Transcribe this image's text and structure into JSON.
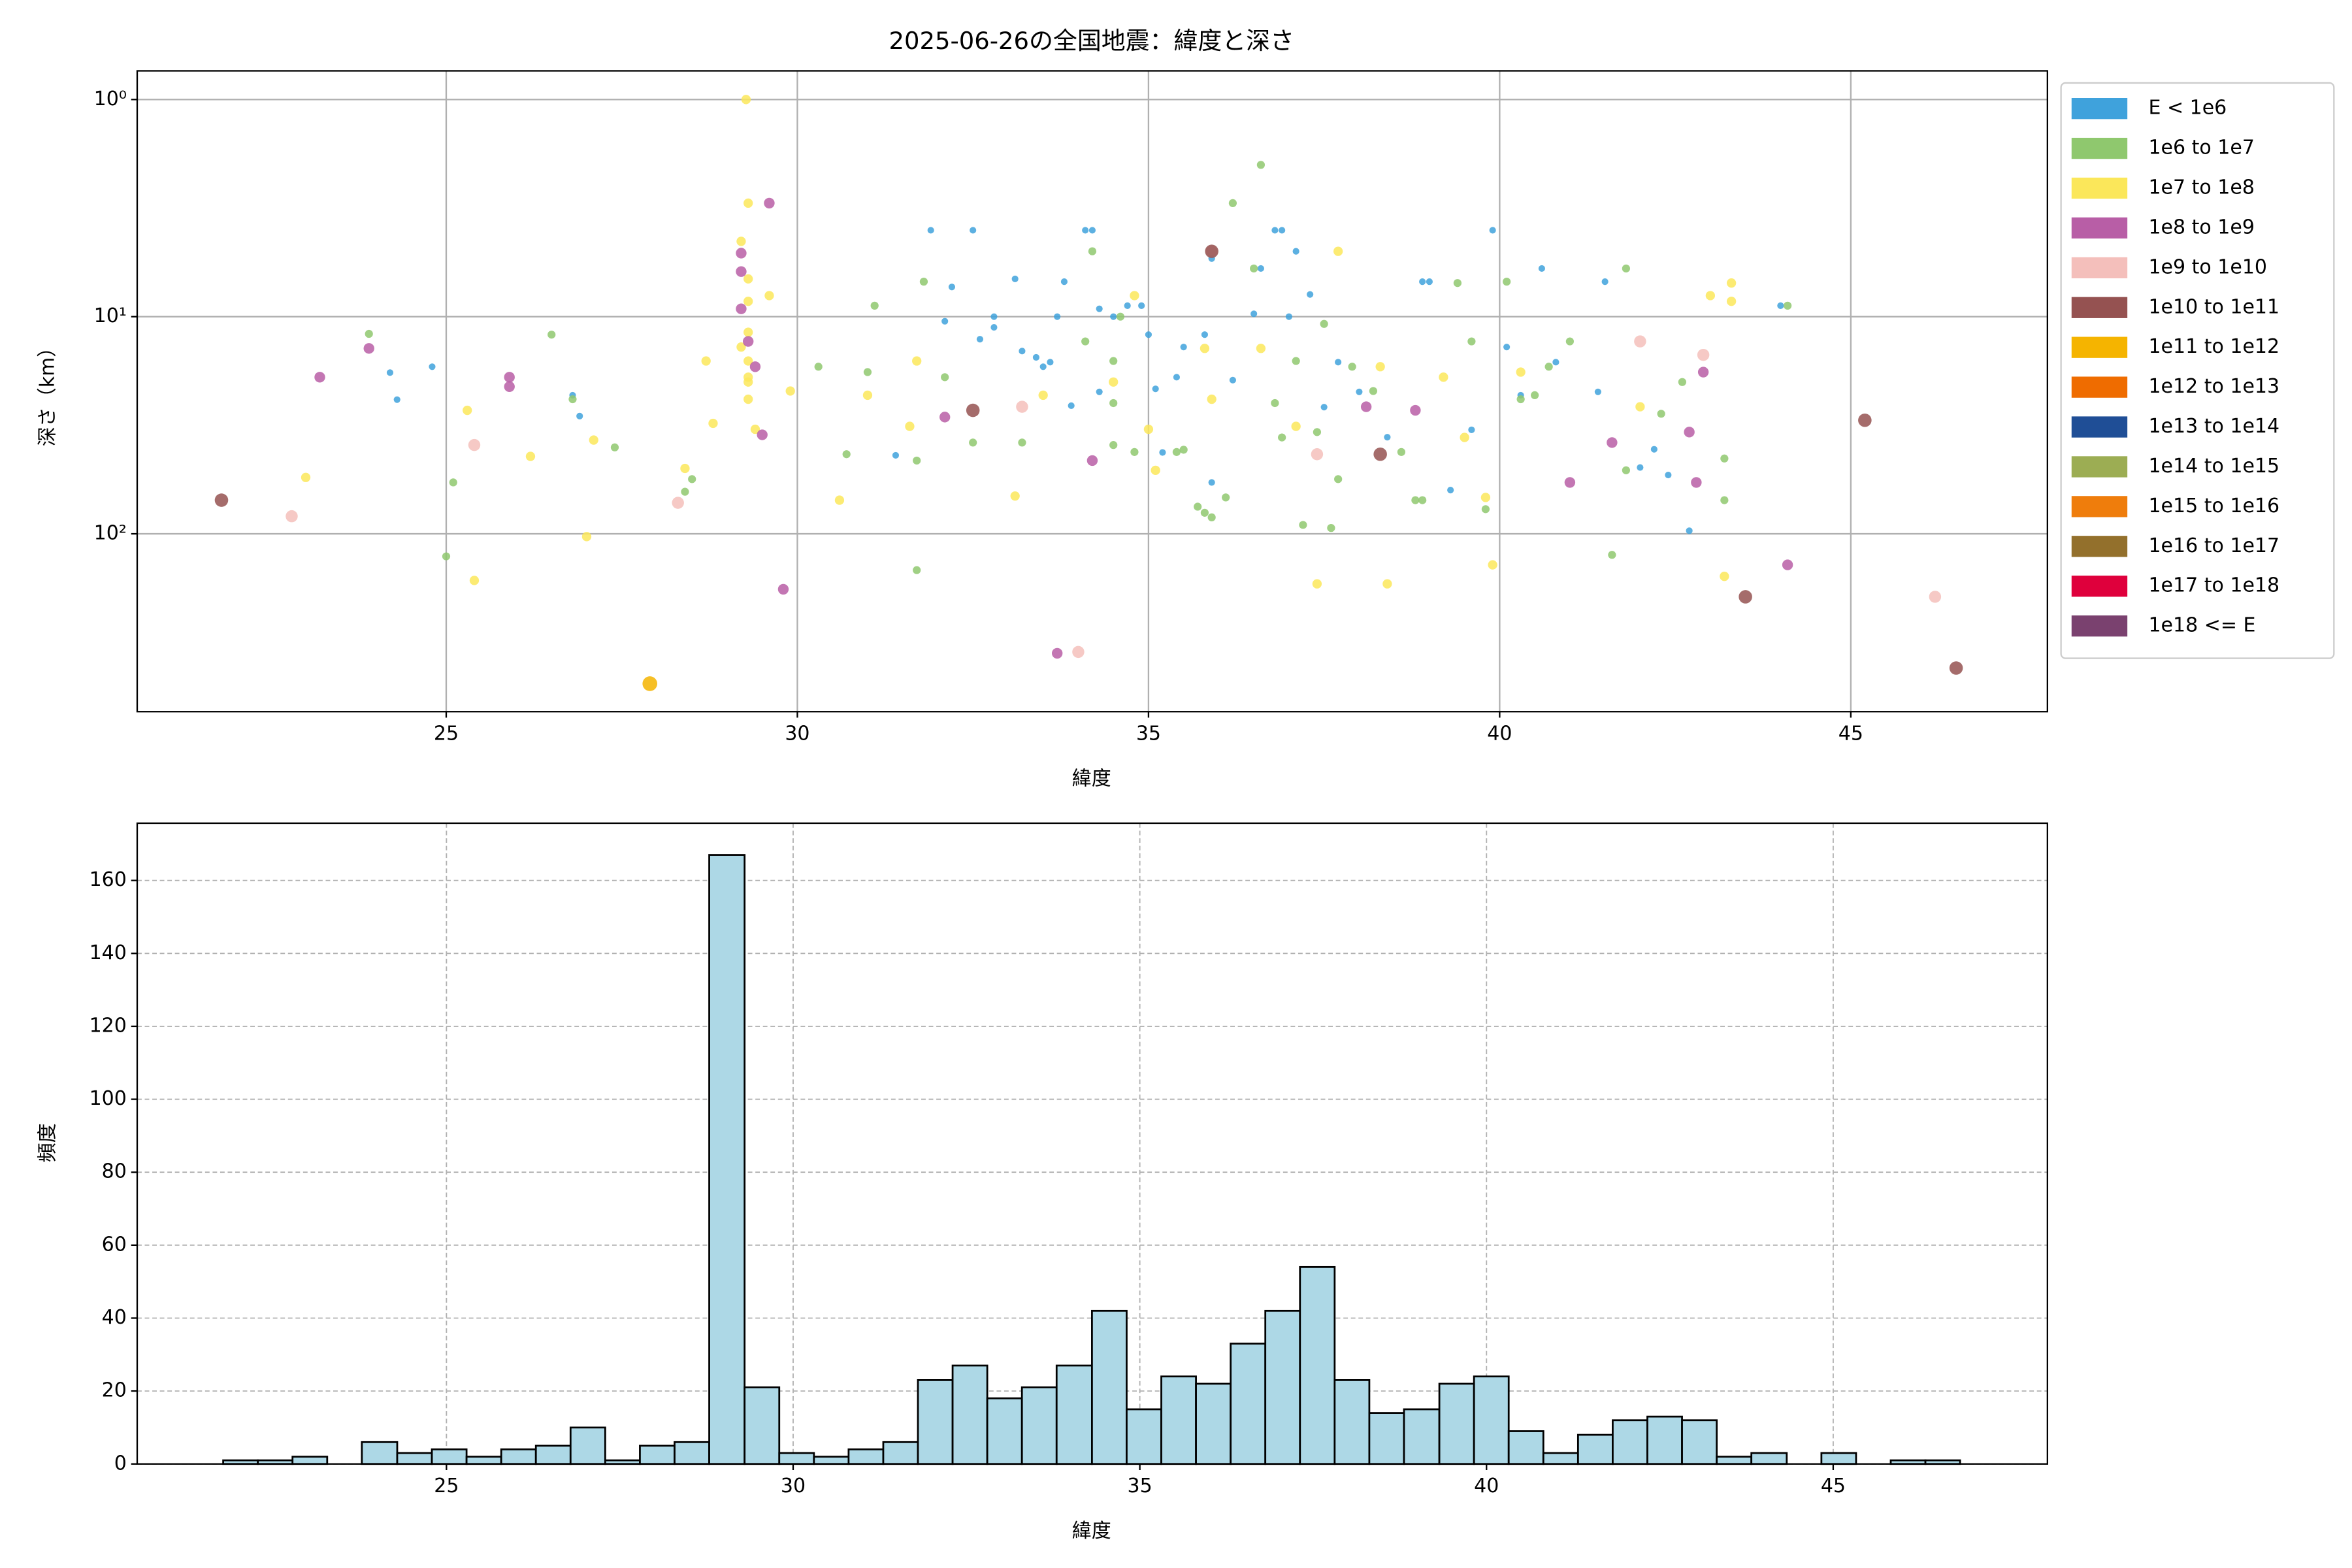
{
  "chart_data": [
    {
      "type": "scatter",
      "title": "2025-06-26の全国地震：緯度と深さ",
      "xlabel": "緯度",
      "ylabel": "深さ（km）",
      "xlim": [
        20.6,
        47.8
      ],
      "xticks": [
        25,
        30,
        35,
        40,
        45
      ],
      "ylim": [
        659,
        0.738
      ],
      "yscale": "log",
      "yticks": [
        {
          "value": 1,
          "label": "10⁰"
        },
        {
          "value": 10,
          "label": "10¹"
        },
        {
          "value": 100,
          "label": "10²"
        }
      ],
      "grid": true,
      "legend": "outside upper right",
      "series": [
        {
          "name": "E < 1e6",
          "color": "#3fa2dc",
          "x": [
            24.2,
            24.3,
            24.8,
            26.8,
            26.9,
            31.4,
            31.9,
            32.1,
            32.5,
            32.2,
            32.6,
            32.8,
            33.1,
            33.2,
            33.6,
            33.8,
            33.9,
            34.2,
            34.1,
            34.3,
            34.5,
            34.7,
            34.9,
            35.0,
            35.1,
            35.2,
            35.4,
            35.5,
            35.8,
            35.9,
            35.9,
            36.2,
            36.5,
            36.6,
            36.8,
            36.9,
            37.0,
            37.1,
            37.3,
            37.5,
            37.7,
            38.0,
            38.4,
            38.9,
            39.0,
            39.3,
            39.6,
            39.9,
            40.1,
            40.3,
            40.6,
            40.8,
            41.4,
            41.5,
            42.0,
            42.2,
            42.4,
            42.7,
            44.0,
            34.3,
            33.5,
            33.4,
            33.7,
            32.8
          ],
          "values": [
            18.1,
            24.1,
            17.0,
            23.0,
            28.7,
            43.5,
            4.0,
            10.5,
            4.0,
            7.3,
            12.7,
            10.0,
            6.7,
            14.4,
            16.2,
            6.9,
            25.7,
            4.0,
            4.0,
            9.2,
            10.0,
            8.9,
            8.9,
            12.1,
            21.5,
            42.2,
            19.0,
            13.8,
            12.1,
            5.4,
            58.0,
            19.6,
            9.7,
            6.0,
            4.0,
            4.0,
            10.0,
            5.0,
            7.9,
            26.1,
            16.2,
            22.2,
            35.9,
            6.9,
            6.9,
            62.9,
            33.2,
            4.0,
            13.8,
            23.0,
            6.0,
            16.2,
            22.2,
            6.9,
            49.5,
            40.8,
            53.6,
            96.8,
            8.9,
            22.2,
            17.0,
            15.4,
            10.0,
            11.2
          ]
        },
        {
          "name": "1e6 to 1e7",
          "color": "#8fc86e",
          "x": [
            25.0,
            25.1,
            26.5,
            26.8,
            27.4,
            28.4,
            28.5,
            30.3,
            30.7,
            31.0,
            31.1,
            31.7,
            31.7,
            31.8,
            32.1,
            32.5,
            33.2,
            34.1,
            34.2,
            34.5,
            34.5,
            34.5,
            34.6,
            34.8,
            35.4,
            35.5,
            35.7,
            35.8,
            35.9,
            36.1,
            36.2,
            36.5,
            36.6,
            36.8,
            36.9,
            37.1,
            37.2,
            37.4,
            37.5,
            37.6,
            37.7,
            37.9,
            38.2,
            38.6,
            38.8,
            38.9,
            39.4,
            39.6,
            39.8,
            40.1,
            40.3,
            40.5,
            40.7,
            41.0,
            41.6,
            41.8,
            41.8,
            42.3,
            42.6,
            43.2,
            43.2,
            44.1,
            23.9
          ],
          "values": [
            127,
            58,
            12.1,
            24,
            40,
            64,
            56,
            17,
            43,
            18,
            8.9,
            147,
            46,
            6.9,
            19,
            38,
            38,
            13,
            5.0,
            16,
            25,
            39,
            10,
            42,
            42,
            41,
            75,
            80,
            84,
            68,
            3.0,
            6,
            2.0,
            25,
            36,
            16,
            91,
            34,
            10.8,
            94,
            56,
            17,
            22,
            42,
            70,
            70,
            7,
            13,
            77,
            6.9,
            24,
            23,
            17,
            13,
            125,
            51,
            6,
            28,
            20,
            70,
            45,
            8.9,
            12.0
          ]
        },
        {
          "name": "1e7 to 1e8",
          "color": "#fbe75a",
          "x": [
            29.27,
            29.3,
            29.2,
            29.3,
            29.3,
            29.3,
            29.3,
            29.3,
            29.3,
            29.2,
            29.3,
            29.4,
            29.6,
            29.9,
            23.0,
            25.3,
            25.4,
            26.2,
            27.0,
            27.1,
            28.7,
            28.8,
            28.4,
            30.6,
            31.0,
            31.6,
            31.7,
            33.1,
            33.5,
            34.5,
            34.8,
            35.0,
            35.1,
            35.8,
            35.9,
            36.6,
            37.1,
            37.4,
            37.7,
            38.3,
            38.4,
            39.2,
            39.5,
            39.8,
            39.9,
            40.3,
            42.0,
            43.0,
            43.2,
            43.3,
            43.3
          ],
          "values": [
            1.0,
            3.0,
            4.5,
            6.7,
            8.5,
            11.8,
            16,
            20,
            24,
            13.8,
            19,
            33,
            8,
            22,
            55,
            27,
            164,
            44,
            103,
            37,
            16,
            31,
            50,
            70,
            23,
            32,
            16,
            67,
            23,
            20,
            8,
            33,
            51,
            14,
            24,
            14,
            32,
            170,
            5,
            17,
            170,
            19,
            36,
            68,
            139,
            18,
            26,
            8,
            157,
            7,
            8.5
          ]
        },
        {
          "name": "1e8 to 1e9",
          "color": "#b85ea6",
          "x": [
            23.2,
            23.9,
            25.9,
            25.9,
            29.2,
            29.2,
            29.2,
            29.3,
            29.4,
            29.5,
            29.6,
            29.8,
            32.1,
            33.7,
            34.2,
            38.1,
            38.8,
            41.0,
            41.6,
            42.7,
            42.8,
            42.9,
            44.1
          ],
          "values": [
            19,
            14,
            19,
            21,
            5.1,
            6.2,
            9.2,
            13,
            17,
            35,
            3.0,
            180,
            29,
            355,
            46,
            26,
            27,
            58,
            38,
            34,
            58,
            18,
            139
          ]
        },
        {
          "name": "1e9 to 1e10",
          "color": "#f4bfbb",
          "x": [
            22.8,
            25.4,
            28.3,
            33.2,
            34.0,
            35.9,
            37.4,
            42.0,
            42.9,
            46.2
          ],
          "values": [
            83,
            39,
            72,
            26,
            350,
            5,
            43,
            13,
            15,
            195
          ]
        },
        {
          "name": "1e10 to 1e11",
          "color": "#955251",
          "x": [
            21.8,
            32.5,
            35.9,
            38.3,
            43.5,
            45.2,
            46.5
          ],
          "values": [
            70,
            27,
            5,
            43,
            195,
            30,
            415
          ]
        },
        {
          "name": "1e11 to 1e12",
          "color": "#f5b400",
          "x": [
            27.9
          ],
          "values": [
            490
          ]
        },
        {
          "name": "1e12 to 1e13",
          "color": "#ef6c00",
          "x": [],
          "values": []
        },
        {
          "name": "1e13 to 1e14",
          "color": "#1f4e96",
          "x": [],
          "values": []
        },
        {
          "name": "1e14 to 1e15",
          "color": "#9cad53",
          "x": [],
          "values": []
        },
        {
          "name": "1e15 to 1e16",
          "color": "#ef7d0c",
          "x": [],
          "values": []
        },
        {
          "name": "1e16 to 1e17",
          "color": "#93702c",
          "x": [],
          "values": []
        },
        {
          "name": "1e17 to 1e18",
          "color": "#df003c",
          "x": [],
          "values": []
        },
        {
          "name": "1e18 <= E",
          "color": "#7a416f",
          "x": [],
          "values": []
        }
      ]
    },
    {
      "type": "histogram",
      "xlabel": "緯度",
      "ylabel": "頻度",
      "xlim": [
        20.54,
        48.09
      ],
      "xticks": [
        25,
        30,
        35,
        40,
        45
      ],
      "ylim": [
        0,
        175.7
      ],
      "yticks": [
        0,
        20,
        40,
        60,
        80,
        100,
        120,
        140,
        160
      ],
      "grid": "dashed",
      "color": "#add8e6",
      "edgecolor": "#000000",
      "bins": [
        21.78,
        22.28,
        22.78,
        23.28,
        23.78,
        24.29,
        24.79,
        25.29,
        25.79,
        26.29,
        26.79,
        27.29,
        27.79,
        28.29,
        28.79,
        29.3,
        29.8,
        30.3,
        30.8,
        31.3,
        31.8,
        32.3,
        32.8,
        33.3,
        33.8,
        34.31,
        34.81,
        35.31,
        35.81,
        36.31,
        36.81,
        37.31,
        37.81,
        38.31,
        38.81,
        39.32,
        39.82,
        40.32,
        40.82,
        41.32,
        41.82,
        42.32,
        42.82,
        43.32,
        43.82,
        44.33,
        44.83,
        45.33,
        45.83,
        46.33,
        46.83
      ],
      "values": [
        1,
        1,
        2,
        0,
        6,
        3,
        4,
        2,
        4,
        5,
        10,
        1,
        5,
        6,
        167,
        21,
        3,
        2,
        4,
        6,
        23,
        27,
        18,
        21,
        27,
        42,
        15,
        24,
        22,
        33,
        42,
        54,
        23,
        14,
        15,
        22,
        24,
        9,
        3,
        8,
        12,
        13,
        12,
        2,
        3,
        0,
        3,
        0,
        1,
        1
      ]
    }
  ]
}
